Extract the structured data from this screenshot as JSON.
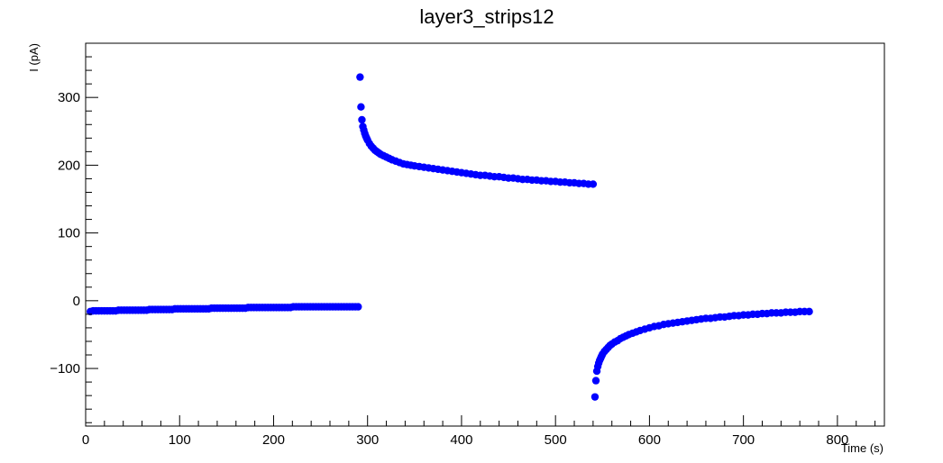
{
  "chart_data": {
    "type": "scatter",
    "title": "layer3_strips12",
    "xlabel": "Time (s)",
    "ylabel": "I (pA)",
    "xlim": [
      0,
      850
    ],
    "ylim": [
      -185,
      380
    ],
    "x_ticks": [
      0,
      100,
      200,
      300,
      400,
      500,
      600,
      700,
      800
    ],
    "y_ticks": [
      -100,
      0,
      100,
      200,
      300
    ],
    "grid": false,
    "legend": "none",
    "marker_color": "#0000ff",
    "series": [
      {
        "points": [
          [
            5,
            -16
          ],
          [
            8,
            -15
          ],
          [
            11,
            -15
          ],
          [
            14,
            -15
          ],
          [
            17,
            -15
          ],
          [
            20,
            -15
          ],
          [
            23,
            -15
          ],
          [
            26,
            -15
          ],
          [
            29,
            -15
          ],
          [
            32,
            -15
          ],
          [
            35,
            -14
          ],
          [
            38,
            -14
          ],
          [
            41,
            -14
          ],
          [
            44,
            -14
          ],
          [
            47,
            -14
          ],
          [
            50,
            -14
          ],
          [
            53,
            -14
          ],
          [
            56,
            -14
          ],
          [
            59,
            -14
          ],
          [
            62,
            -14
          ],
          [
            65,
            -14
          ],
          [
            68,
            -13
          ],
          [
            71,
            -13
          ],
          [
            74,
            -13
          ],
          [
            77,
            -13
          ],
          [
            80,
            -13
          ],
          [
            83,
            -13
          ],
          [
            86,
            -13
          ],
          [
            89,
            -13
          ],
          [
            92,
            -13
          ],
          [
            95,
            -12
          ],
          [
            98,
            -12
          ],
          [
            101,
            -12
          ],
          [
            104,
            -12
          ],
          [
            107,
            -12
          ],
          [
            110,
            -12
          ],
          [
            113,
            -12
          ],
          [
            116,
            -12
          ],
          [
            119,
            -12
          ],
          [
            122,
            -12
          ],
          [
            125,
            -12
          ],
          [
            128,
            -12
          ],
          [
            131,
            -12
          ],
          [
            134,
            -11
          ],
          [
            137,
            -11
          ],
          [
            140,
            -11
          ],
          [
            143,
            -11
          ],
          [
            146,
            -11
          ],
          [
            149,
            -11
          ],
          [
            152,
            -11
          ],
          [
            155,
            -11
          ],
          [
            158,
            -11
          ],
          [
            161,
            -11
          ],
          [
            164,
            -11
          ],
          [
            167,
            -11
          ],
          [
            170,
            -11
          ],
          [
            173,
            -10
          ],
          [
            176,
            -10
          ],
          [
            179,
            -10
          ],
          [
            182,
            -10
          ],
          [
            185,
            -10
          ],
          [
            188,
            -10
          ],
          [
            191,
            -10
          ],
          [
            194,
            -10
          ],
          [
            197,
            -10
          ],
          [
            200,
            -10
          ],
          [
            203,
            -10
          ],
          [
            206,
            -10
          ],
          [
            209,
            -10
          ],
          [
            212,
            -10
          ],
          [
            215,
            -10
          ],
          [
            218,
            -10
          ],
          [
            221,
            -9
          ],
          [
            224,
            -9
          ],
          [
            227,
            -9
          ],
          [
            230,
            -9
          ],
          [
            233,
            -9
          ],
          [
            236,
            -9
          ],
          [
            239,
            -9
          ],
          [
            242,
            -9
          ],
          [
            245,
            -9
          ],
          [
            248,
            -9
          ],
          [
            251,
            -9
          ],
          [
            254,
            -9
          ],
          [
            257,
            -9
          ],
          [
            260,
            -9
          ],
          [
            263,
            -9
          ],
          [
            266,
            -9
          ],
          [
            269,
            -9
          ],
          [
            272,
            -9
          ],
          [
            275,
            -9
          ],
          [
            278,
            -9
          ],
          [
            281,
            -9
          ],
          [
            284,
            -9
          ],
          [
            287,
            -9
          ],
          [
            290,
            -9
          ]
        ]
      },
      {
        "points": [
          [
            292,
            330
          ],
          [
            293,
            286
          ],
          [
            294,
            267
          ],
          [
            295,
            257
          ],
          [
            296,
            252
          ],
          [
            297,
            247
          ],
          [
            298,
            243
          ],
          [
            299,
            240
          ],
          [
            300,
            237
          ],
          [
            302,
            232
          ],
          [
            304,
            228
          ],
          [
            306,
            225
          ],
          [
            308,
            222
          ],
          [
            310,
            220
          ],
          [
            312,
            218
          ],
          [
            314,
            216
          ],
          [
            317,
            214
          ],
          [
            320,
            212
          ],
          [
            323,
            210
          ],
          [
            326,
            208
          ],
          [
            330,
            206
          ],
          [
            334,
            204
          ],
          [
            338,
            202
          ],
          [
            342,
            201
          ],
          [
            346,
            200
          ],
          [
            350,
            199
          ],
          [
            355,
            198
          ],
          [
            360,
            197
          ],
          [
            365,
            196
          ],
          [
            370,
            195
          ],
          [
            375,
            194
          ],
          [
            380,
            193
          ],
          [
            385,
            192
          ],
          [
            390,
            191
          ],
          [
            395,
            190
          ],
          [
            400,
            189
          ],
          [
            405,
            188
          ],
          [
            410,
            187
          ],
          [
            415,
            186
          ],
          [
            420,
            185
          ],
          [
            425,
            185
          ],
          [
            430,
            184
          ],
          [
            435,
            183
          ],
          [
            440,
            183
          ],
          [
            445,
            182
          ],
          [
            450,
            181
          ],
          [
            455,
            181
          ],
          [
            460,
            180
          ],
          [
            465,
            179
          ],
          [
            470,
            179
          ],
          [
            475,
            178
          ],
          [
            480,
            178
          ],
          [
            485,
            177
          ],
          [
            490,
            177
          ],
          [
            495,
            176
          ],
          [
            500,
            176
          ],
          [
            505,
            175
          ],
          [
            510,
            175
          ],
          [
            515,
            174
          ],
          [
            520,
            174
          ],
          [
            525,
            173
          ],
          [
            530,
            173
          ],
          [
            535,
            172
          ],
          [
            540,
            172
          ]
        ]
      },
      {
        "points": [
          [
            542,
            -142
          ],
          [
            543,
            -118
          ],
          [
            544,
            -104
          ],
          [
            545,
            -97
          ],
          [
            546,
            -92
          ],
          [
            547,
            -88
          ],
          [
            548,
            -85
          ],
          [
            549,
            -82
          ],
          [
            550,
            -79
          ],
          [
            552,
            -75
          ],
          [
            554,
            -72
          ],
          [
            556,
            -69
          ],
          [
            558,
            -66
          ],
          [
            560,
            -64
          ],
          [
            563,
            -61
          ],
          [
            566,
            -59
          ],
          [
            569,
            -56
          ],
          [
            572,
            -54
          ],
          [
            575,
            -52
          ],
          [
            578,
            -50
          ],
          [
            582,
            -48
          ],
          [
            586,
            -46
          ],
          [
            590,
            -44
          ],
          [
            595,
            -42
          ],
          [
            600,
            -40
          ],
          [
            605,
            -38
          ],
          [
            610,
            -37
          ],
          [
            615,
            -35
          ],
          [
            620,
            -34
          ],
          [
            625,
            -33
          ],
          [
            630,
            -32
          ],
          [
            635,
            -31
          ],
          [
            640,
            -30
          ],
          [
            645,
            -29
          ],
          [
            650,
            -28
          ],
          [
            655,
            -27
          ],
          [
            660,
            -26
          ],
          [
            665,
            -26
          ],
          [
            670,
            -25
          ],
          [
            675,
            -24
          ],
          [
            680,
            -24
          ],
          [
            685,
            -23
          ],
          [
            690,
            -22
          ],
          [
            695,
            -22
          ],
          [
            700,
            -21
          ],
          [
            705,
            -21
          ],
          [
            710,
            -20
          ],
          [
            715,
            -20
          ],
          [
            720,
            -19
          ],
          [
            725,
            -19
          ],
          [
            730,
            -18
          ],
          [
            735,
            -18
          ],
          [
            740,
            -18
          ],
          [
            745,
            -17
          ],
          [
            750,
            -17
          ],
          [
            755,
            -17
          ],
          [
            760,
            -16
          ],
          [
            765,
            -16
          ],
          [
            770,
            -16
          ]
        ]
      }
    ]
  }
}
